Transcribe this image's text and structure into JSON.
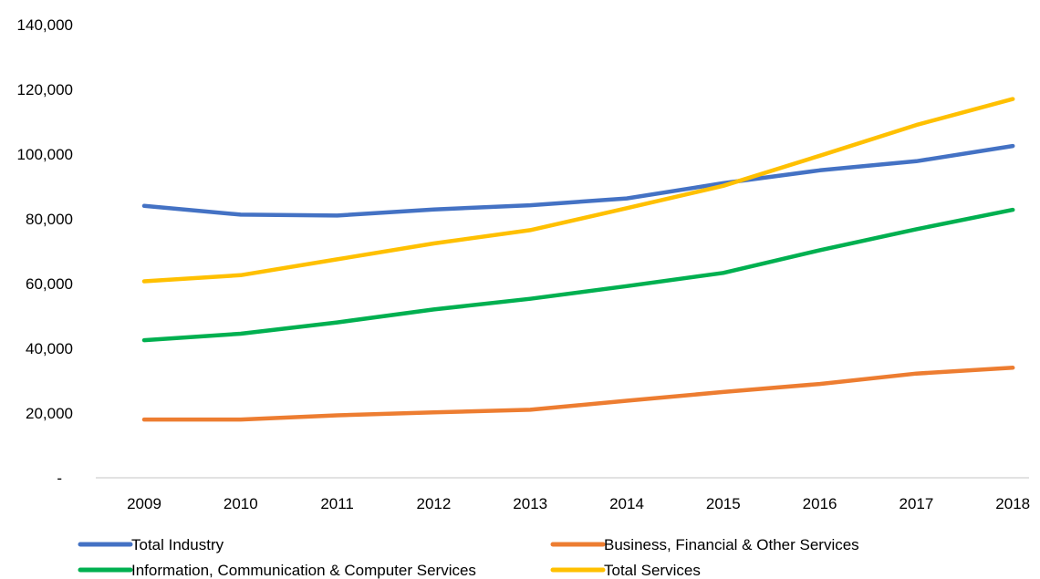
{
  "chart_data": {
    "type": "line",
    "title": "",
    "xlabel": "",
    "ylabel": "",
    "categories": [
      "2009",
      "2010",
      "2011",
      "2012",
      "2013",
      "2014",
      "2015",
      "2016",
      "2017",
      "2018"
    ],
    "ylim": [
      0,
      140000
    ],
    "yticks": [
      {
        "value": 0,
        "label": "-"
      },
      {
        "value": 20000,
        "label": "20,000"
      },
      {
        "value": 40000,
        "label": "40,000"
      },
      {
        "value": 60000,
        "label": "60,000"
      },
      {
        "value": 80000,
        "label": "80,000"
      },
      {
        "value": 100000,
        "label": "100,000"
      },
      {
        "value": 120000,
        "label": "120,000"
      },
      {
        "value": 140000,
        "label": "140,000"
      }
    ],
    "grid": false,
    "legend_position": "bottom",
    "series": [
      {
        "name": "Total Industry",
        "color": "#4472C4",
        "values": [
          84000,
          81300,
          81000,
          82900,
          84200,
          86300,
          91000,
          95000,
          97800,
          102500
        ]
      },
      {
        "name": "Business, Financial & Other Services",
        "color": "#ED7D31",
        "values": [
          18000,
          18000,
          19300,
          20200,
          21000,
          23800,
          26500,
          29000,
          32200,
          34000
        ]
      },
      {
        "name": "Information, Communication & Computer Services",
        "color": "#00B050",
        "values": [
          42500,
          44500,
          48000,
          52000,
          55300,
          59200,
          63300,
          70300,
          76800,
          82800
        ]
      },
      {
        "name": "Total Services",
        "color": "#FFC000",
        "values": [
          60700,
          62600,
          67500,
          72400,
          76500,
          83300,
          90200,
          99500,
          109000,
          117000
        ]
      }
    ]
  }
}
